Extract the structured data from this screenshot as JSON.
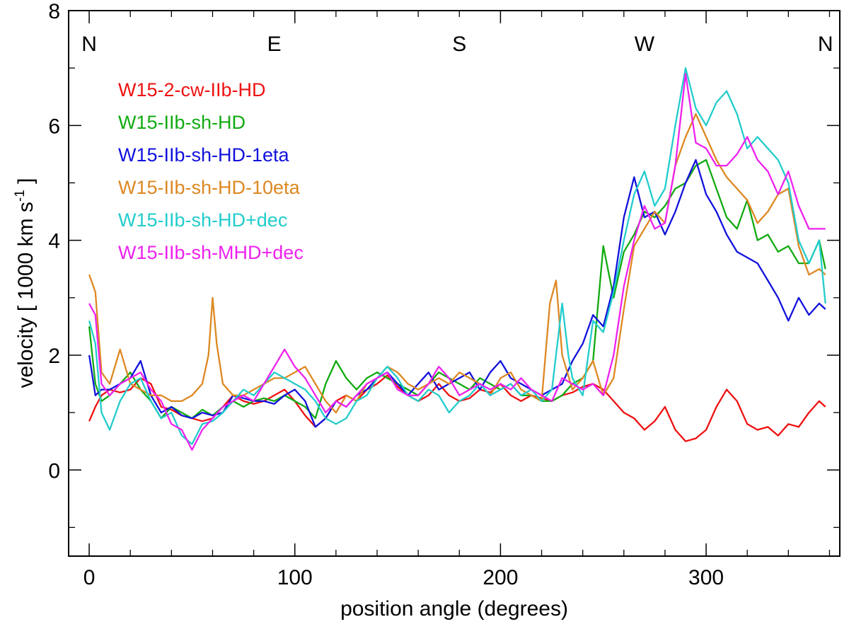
{
  "chart_data": {
    "type": "line",
    "title": "",
    "xlabel": "position angle (degrees)",
    "ylabel_main": "velocity [ 1000 km s",
    "ylabel_sup": "-1",
    "ylabel_end": " ]",
    "xlim": [
      -10,
      365
    ],
    "ylim": [
      -1.5,
      8
    ],
    "xticks": [
      0,
      100,
      200,
      300
    ],
    "xtick_labels": [
      "0",
      "100",
      "200",
      "300"
    ],
    "yticks": [
      0,
      2,
      4,
      6,
      8
    ],
    "ytick_labels": [
      "0",
      "2",
      "4",
      "6",
      "8"
    ],
    "grid": false,
    "legend_position": "top-left",
    "direction_labels": [
      {
        "text": "N",
        "x": 0
      },
      {
        "text": "E",
        "x": 90
      },
      {
        "text": "S",
        "x": 180
      },
      {
        "text": "W",
        "x": 270
      },
      {
        "text": "N",
        "x": 358
      }
    ],
    "series": [
      {
        "name": "W15-2-cw-IIb-HD",
        "color": "#ee1111",
        "x": [
          0,
          3,
          6,
          10,
          15,
          20,
          25,
          30,
          35,
          40,
          45,
          50,
          55,
          60,
          65,
          70,
          75,
          80,
          85,
          90,
          95,
          100,
          105,
          110,
          115,
          120,
          125,
          130,
          135,
          140,
          145,
          150,
          155,
          160,
          165,
          170,
          175,
          180,
          185,
          190,
          195,
          200,
          205,
          210,
          215,
          220,
          225,
          230,
          235,
          240,
          245,
          250,
          255,
          260,
          265,
          270,
          275,
          280,
          285,
          290,
          295,
          300,
          305,
          310,
          315,
          320,
          325,
          330,
          335,
          340,
          345,
          350,
          355,
          358
        ],
        "y": [
          0.85,
          1.1,
          1.3,
          1.4,
          1.35,
          1.4,
          1.6,
          1.5,
          1.1,
          1.05,
          0.95,
          0.9,
          0.85,
          0.9,
          1.1,
          1.3,
          1.2,
          1.15,
          1.2,
          1.3,
          1.4,
          1.2,
          0.95,
          0.75,
          0.9,
          1.2,
          1.3,
          1.2,
          1.4,
          1.5,
          1.65,
          1.45,
          1.3,
          1.2,
          1.3,
          1.5,
          1.3,
          1.2,
          1.25,
          1.4,
          1.35,
          1.5,
          1.3,
          1.2,
          1.3,
          1.25,
          1.2,
          1.3,
          1.35,
          1.45,
          1.5,
          1.4,
          1.2,
          1.0,
          0.9,
          0.7,
          0.85,
          1.1,
          0.7,
          0.5,
          0.55,
          0.7,
          1.1,
          1.4,
          1.2,
          0.8,
          0.7,
          0.75,
          0.6,
          0.8,
          0.75,
          1.0,
          1.2,
          1.1
        ]
      },
      {
        "name": "W15-IIb-sh-HD",
        "color": "#11aa11",
        "x": [
          0,
          3,
          6,
          10,
          15,
          20,
          25,
          30,
          35,
          40,
          45,
          50,
          55,
          60,
          65,
          70,
          75,
          80,
          85,
          90,
          95,
          100,
          105,
          110,
          115,
          120,
          125,
          130,
          135,
          140,
          145,
          150,
          155,
          160,
          165,
          170,
          175,
          180,
          185,
          190,
          195,
          200,
          205,
          210,
          215,
          220,
          225,
          230,
          235,
          240,
          245,
          250,
          255,
          260,
          265,
          270,
          275,
          280,
          285,
          290,
          295,
          300,
          305,
          310,
          315,
          320,
          325,
          330,
          335,
          340,
          345,
          350,
          355,
          358
        ],
        "y": [
          2.5,
          1.5,
          1.2,
          1.3,
          1.5,
          1.7,
          1.4,
          1.2,
          0.9,
          1.1,
          1.0,
          0.9,
          1.05,
          0.95,
          1.1,
          1.2,
          1.1,
          1.2,
          1.25,
          1.2,
          1.3,
          1.2,
          1.1,
          0.9,
          1.5,
          1.9,
          1.6,
          1.4,
          1.6,
          1.7,
          1.6,
          1.5,
          1.4,
          1.3,
          1.5,
          1.7,
          1.6,
          1.5,
          1.4,
          1.6,
          1.5,
          1.4,
          1.5,
          1.3,
          1.3,
          1.2,
          1.2,
          1.3,
          1.5,
          1.6,
          1.9,
          3.9,
          3.0,
          3.8,
          4.1,
          4.5,
          4.4,
          4.6,
          4.9,
          5.0,
          5.3,
          5.4,
          4.9,
          4.4,
          4.2,
          4.7,
          4.0,
          4.1,
          3.8,
          3.9,
          3.6,
          3.6,
          4.0,
          3.5
        ]
      },
      {
        "name": "W15-IIb-sh-HD-1eta",
        "color": "#1111dd",
        "x": [
          0,
          3,
          6,
          10,
          15,
          20,
          25,
          30,
          35,
          40,
          45,
          50,
          55,
          60,
          65,
          70,
          75,
          80,
          85,
          90,
          95,
          100,
          105,
          110,
          115,
          120,
          125,
          130,
          135,
          140,
          145,
          150,
          155,
          160,
          165,
          170,
          175,
          180,
          185,
          190,
          195,
          200,
          205,
          210,
          215,
          220,
          225,
          230,
          235,
          240,
          245,
          250,
          255,
          260,
          265,
          270,
          275,
          280,
          285,
          290,
          295,
          300,
          305,
          310,
          315,
          320,
          325,
          330,
          335,
          340,
          345,
          350,
          355,
          358
        ],
        "y": [
          2.0,
          1.3,
          1.4,
          1.4,
          1.5,
          1.6,
          1.9,
          1.3,
          1.0,
          1.1,
          0.95,
          0.9,
          1.0,
          0.95,
          1.0,
          1.3,
          1.25,
          1.2,
          1.2,
          1.15,
          1.3,
          1.4,
          1.2,
          0.75,
          0.9,
          1.2,
          1.1,
          1.3,
          1.4,
          1.6,
          1.7,
          1.5,
          1.3,
          1.5,
          1.7,
          1.4,
          1.5,
          1.6,
          1.7,
          1.4,
          1.7,
          1.9,
          1.6,
          1.5,
          1.4,
          1.3,
          1.4,
          1.5,
          1.9,
          2.2,
          2.7,
          2.5,
          3.2,
          4.4,
          5.1,
          4.4,
          4.5,
          4.1,
          4.5,
          5.0,
          5.4,
          4.8,
          4.5,
          4.1,
          3.8,
          3.7,
          3.6,
          3.3,
          3.0,
          2.6,
          3.0,
          2.7,
          2.9,
          2.8
        ]
      },
      {
        "name": "W15-IIb-sh-HD-10eta",
        "color": "#dd8822",
        "x": [
          0,
          3,
          6,
          10,
          15,
          20,
          25,
          30,
          35,
          40,
          45,
          50,
          55,
          58,
          60,
          62,
          65,
          70,
          75,
          80,
          85,
          90,
          95,
          100,
          105,
          110,
          115,
          120,
          125,
          130,
          135,
          140,
          145,
          150,
          155,
          160,
          165,
          170,
          175,
          180,
          185,
          190,
          195,
          200,
          205,
          210,
          215,
          220,
          224,
          227,
          230,
          235,
          240,
          245,
          250,
          255,
          260,
          265,
          270,
          275,
          280,
          285,
          290,
          295,
          300,
          305,
          310,
          315,
          320,
          325,
          330,
          335,
          340,
          345,
          350,
          355,
          358
        ],
        "y": [
          3.4,
          3.1,
          1.7,
          1.5,
          2.1,
          1.5,
          1.4,
          1.3,
          1.3,
          1.2,
          1.2,
          1.3,
          1.5,
          2.0,
          3.0,
          2.2,
          1.5,
          1.3,
          1.3,
          1.4,
          1.5,
          1.6,
          1.6,
          1.7,
          1.8,
          1.5,
          1.2,
          1.0,
          1.3,
          1.2,
          1.5,
          1.6,
          1.8,
          1.7,
          1.5,
          1.4,
          1.5,
          1.6,
          1.5,
          1.7,
          1.6,
          1.5,
          1.3,
          1.6,
          1.7,
          1.4,
          1.3,
          1.2,
          2.9,
          3.3,
          2.0,
          1.4,
          1.6,
          1.9,
          1.3,
          1.6,
          2.8,
          3.9,
          4.2,
          4.5,
          4.3,
          5.3,
          5.8,
          6.2,
          5.8,
          5.4,
          5.1,
          4.9,
          4.7,
          4.3,
          4.5,
          4.8,
          4.9,
          3.9,
          3.4,
          3.5,
          3.4
        ]
      },
      {
        "name": "W15-IIb-sh-HD+dec",
        "color": "#22cccc",
        "x": [
          0,
          3,
          6,
          10,
          15,
          20,
          25,
          30,
          35,
          40,
          45,
          50,
          55,
          60,
          65,
          70,
          75,
          80,
          85,
          90,
          95,
          100,
          105,
          110,
          115,
          120,
          125,
          130,
          135,
          140,
          145,
          150,
          155,
          160,
          165,
          170,
          175,
          180,
          185,
          190,
          195,
          200,
          205,
          210,
          215,
          220,
          225,
          230,
          233,
          235,
          240,
          245,
          250,
          255,
          260,
          265,
          270,
          275,
          280,
          285,
          290,
          295,
          300,
          305,
          310,
          315,
          320,
          325,
          330,
          335,
          340,
          345,
          350,
          355,
          358
        ],
        "y": [
          2.6,
          2.2,
          1.0,
          0.7,
          1.2,
          1.5,
          1.6,
          1.2,
          0.9,
          1.0,
          0.6,
          0.45,
          0.8,
          0.85,
          1.0,
          1.2,
          1.4,
          1.3,
          1.5,
          1.7,
          1.6,
          1.5,
          1.4,
          1.2,
          0.9,
          0.8,
          0.9,
          1.2,
          1.3,
          1.6,
          1.8,
          1.6,
          1.3,
          1.2,
          1.4,
          1.3,
          1.0,
          1.2,
          1.3,
          1.5,
          1.3,
          1.4,
          1.5,
          1.3,
          1.4,
          1.2,
          1.4,
          2.9,
          2.0,
          1.6,
          1.3,
          2.6,
          2.4,
          3.1,
          4.0,
          4.8,
          5.2,
          4.6,
          4.9,
          6.0,
          7.0,
          6.3,
          6.0,
          6.4,
          6.6,
          6.2,
          5.6,
          5.8,
          5.6,
          5.4,
          5.0,
          4.0,
          3.6,
          4.0,
          2.9
        ]
      },
      {
        "name": "W15-IIb-sh-MHD+dec",
        "color": "#ee22ee",
        "x": [
          0,
          3,
          6,
          10,
          15,
          20,
          25,
          30,
          35,
          40,
          45,
          50,
          55,
          60,
          65,
          70,
          75,
          80,
          85,
          90,
          95,
          100,
          105,
          110,
          115,
          120,
          125,
          130,
          135,
          140,
          145,
          150,
          155,
          160,
          165,
          170,
          175,
          180,
          185,
          190,
          195,
          200,
          205,
          210,
          215,
          220,
          225,
          230,
          235,
          240,
          245,
          250,
          255,
          260,
          265,
          270,
          275,
          280,
          285,
          290,
          295,
          300,
          305,
          310,
          315,
          320,
          325,
          330,
          335,
          340,
          345,
          350,
          355,
          358
        ],
        "y": [
          2.9,
          2.7,
          1.5,
          1.3,
          1.5,
          1.6,
          1.7,
          1.4,
          1.2,
          0.8,
          0.7,
          0.35,
          0.7,
          0.9,
          1.1,
          1.2,
          1.3,
          1.2,
          1.5,
          1.8,
          2.1,
          1.8,
          1.6,
          1.3,
          1.0,
          1.2,
          1.1,
          1.3,
          1.5,
          1.6,
          1.7,
          1.4,
          1.3,
          1.3,
          1.5,
          1.8,
          1.6,
          1.3,
          1.4,
          1.5,
          1.4,
          1.5,
          1.4,
          1.6,
          1.4,
          1.3,
          1.2,
          1.6,
          1.5,
          1.4,
          1.5,
          1.3,
          2.0,
          3.2,
          4.0,
          4.6,
          4.2,
          4.3,
          5.3,
          6.9,
          5.7,
          5.6,
          5.3,
          5.3,
          5.5,
          5.8,
          5.4,
          5.2,
          4.8,
          5.2,
          4.6,
          4.2,
          4.2,
          4.2
        ]
      }
    ]
  }
}
